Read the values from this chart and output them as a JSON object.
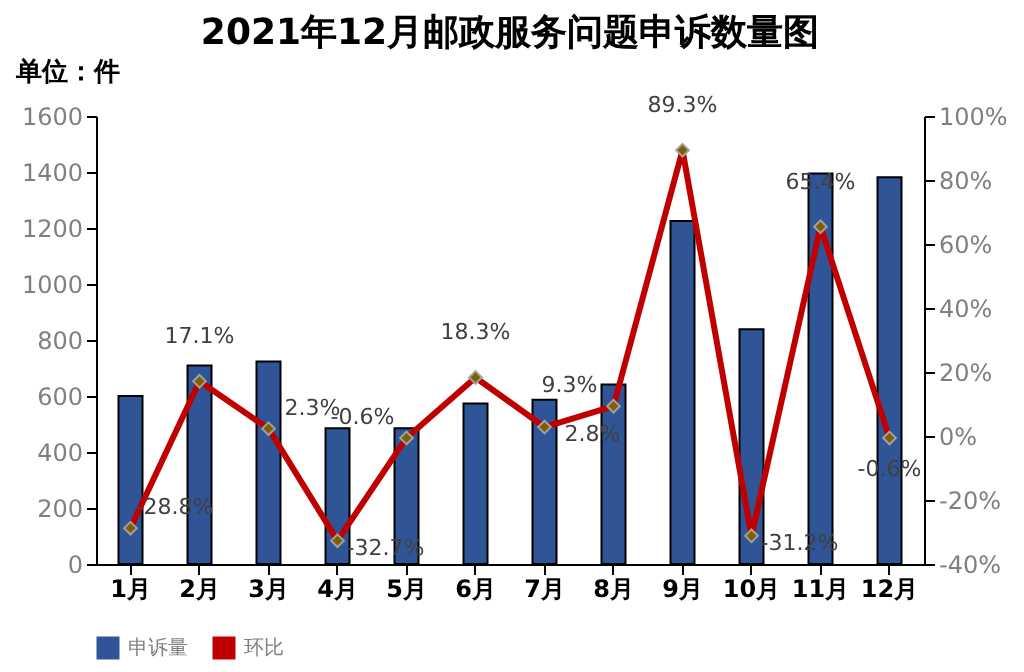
{
  "chart_data": {
    "type": "bar",
    "title": "2021年12月邮政服务问题申诉数量图",
    "annotations": [
      "单位：件"
    ],
    "categories": [
      "1月",
      "2月",
      "3月",
      "4月",
      "5月",
      "6月",
      "7月",
      "8月",
      "9月",
      "10月",
      "11月",
      "12月"
    ],
    "series": [
      {
        "name": "申诉量",
        "color": "#2f5597",
        "values": [
          600,
          709,
          723,
          485,
          485,
          573,
          587,
          641,
          1225,
          838,
          1395,
          1381
        ]
      },
      {
        "name": "环比",
        "type": "line",
        "axis": "y2",
        "color": "#c00000",
        "values": [
          -28.8,
          17.1,
          2.3,
          -32.7,
          -0.6,
          18.3,
          2.8,
          9.3,
          89.3,
          -31.2,
          65.4,
          -0.6
        ],
        "value_labels": [
          "-28.8%",
          "17.1%",
          "2.3%",
          "-32.7%",
          "-0.6%",
          "18.3%",
          "2.8%",
          "9.3%",
          "89.3%",
          "-31.2%",
          "65.4%",
          "-0.6%"
        ]
      }
    ],
    "ylim": [
      0,
      1600
    ],
    "yticks": [
      0,
      200,
      400,
      600,
      800,
      1000,
      1200,
      1400,
      1600
    ],
    "y2lim": [
      -40,
      100
    ],
    "y2ticks": [
      {
        "value": -40,
        "label": "-40%"
      },
      {
        "value": -20,
        "label": "-20%"
      },
      {
        "value": 0,
        "label": "0%"
      },
      {
        "value": 20,
        "label": "20%"
      },
      {
        "value": 40,
        "label": "40%"
      },
      {
        "value": 60,
        "label": "60%"
      },
      {
        "value": 80,
        "label": "80%"
      },
      {
        "value": 100,
        "label": "100%"
      }
    ],
    "marker": "diamond",
    "line_style": "solid",
    "grid": false,
    "legend": "bottom"
  }
}
